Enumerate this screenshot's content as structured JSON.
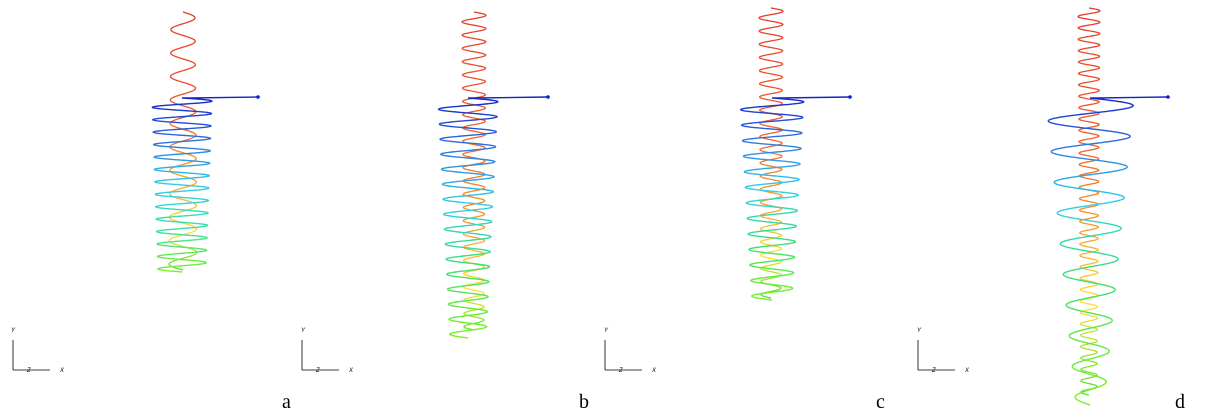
{
  "panels": [
    {
      "id": "a",
      "label": "a",
      "axis_labels": {
        "y": "Y",
        "z": "Z",
        "x": "X"
      }
    },
    {
      "id": "b",
      "label": "b",
      "axis_labels": {
        "y": "Y",
        "z": "Z",
        "x": "X"
      }
    },
    {
      "id": "c",
      "label": "c",
      "axis_labels": {
        "y": "Y",
        "z": "Z",
        "x": "X"
      }
    },
    {
      "id": "d",
      "label": "d",
      "axis_labels": {
        "y": "Y",
        "z": "Z",
        "x": "X"
      }
    }
  ],
  "colors": {
    "blue_dark": "#1020c8",
    "blue": "#2f6fe0",
    "cyan": "#2fd0e8",
    "green_cyan": "#3fe0a0",
    "green": "#3fe03a",
    "lime": "#7cf21c",
    "yellow": "#ffe030",
    "orange": "#f59a2b",
    "red_orange": "#f0502a",
    "red": "#e83a2a"
  },
  "icons": {
    "axis_triad": "xyz-axis-triad-icon"
  }
}
